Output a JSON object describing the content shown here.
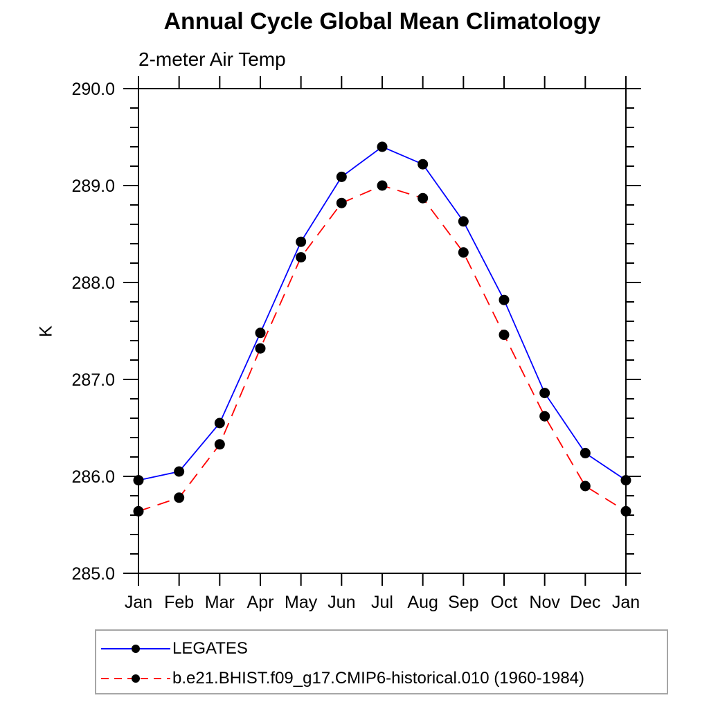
{
  "chart_data": {
    "type": "line",
    "title": "Annual Cycle Global Mean Climatology",
    "subtitle": "2-meter Air Temp",
    "ylabel": "K",
    "xlabel": "",
    "x_ticklabels": [
      "Jan",
      "Feb",
      "Mar",
      "Apr",
      "May",
      "Jun",
      "Jul",
      "Aug",
      "Sep",
      "Oct",
      "Nov",
      "Dec",
      "Jan"
    ],
    "ylim": [
      285.0,
      290.0
    ],
    "y_major_tick_values": [
      285.0,
      286.0,
      287.0,
      288.0,
      289.0,
      290.0
    ],
    "y_major_tick_labels": [
      "285.0",
      "286.0",
      "287.0",
      "288.0",
      "289.0",
      "290.0"
    ],
    "y_minor_step": 0.2,
    "grid": "off",
    "legend_position": "below-left",
    "axis_color": "#000000",
    "marker_color": "#000000",
    "series": [
      {
        "name": "LEGATES",
        "color": "#0000ff",
        "line_style": "solid",
        "marker": "filled-circle",
        "values": [
          285.96,
          286.05,
          286.55,
          287.48,
          288.42,
          289.09,
          289.4,
          289.22,
          288.63,
          287.82,
          286.86,
          286.24,
          285.96
        ]
      },
      {
        "name": "b.e21.BHIST.f09_g17.CMIP6-historical.010 (1960-1984)",
        "color": "#ff0000",
        "line_style": "dashed",
        "marker": "filled-circle",
        "values": [
          285.64,
          285.78,
          286.33,
          287.32,
          288.26,
          288.82,
          289.0,
          288.87,
          288.31,
          287.46,
          286.62,
          285.9,
          285.64
        ]
      }
    ]
  }
}
